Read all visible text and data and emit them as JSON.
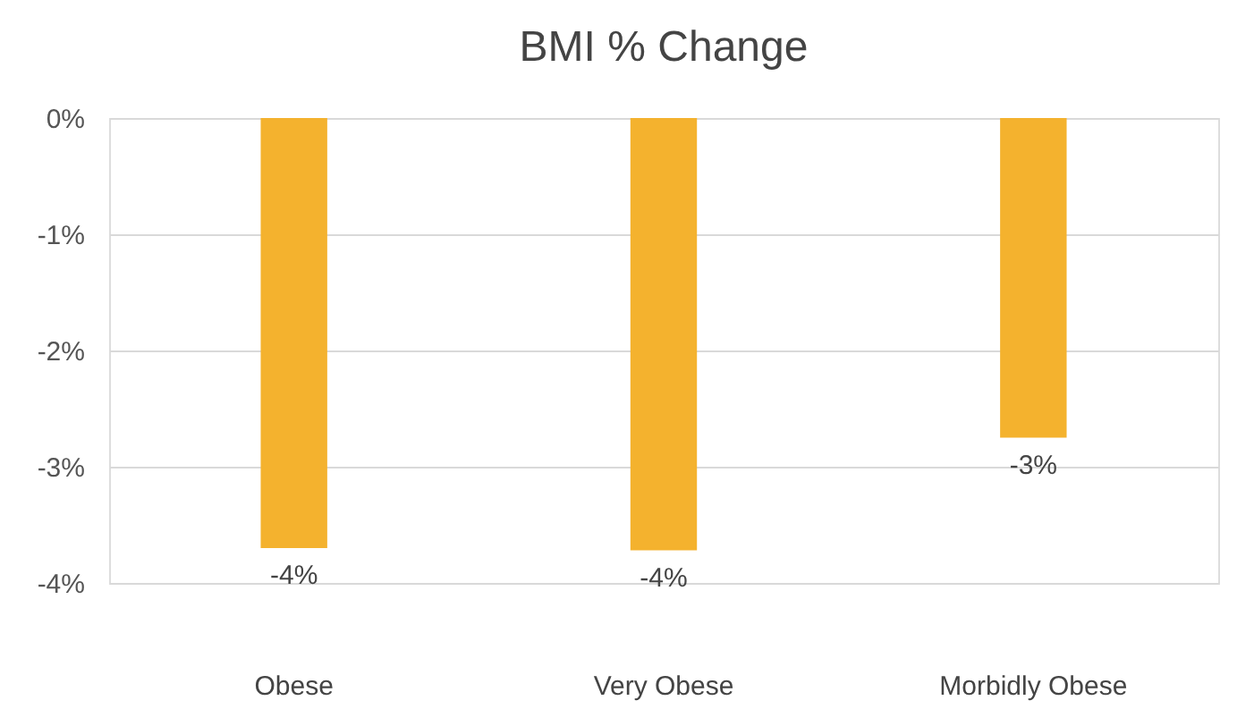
{
  "chart_data": {
    "type": "bar",
    "title": "BMI % Change",
    "categories": [
      "Obese",
      "Very Obese",
      "Morbidly Obese"
    ],
    "series": [
      {
        "color": "#f4b22e",
        "values": [
          -3.7,
          -3.72,
          -2.75
        ],
        "value_labels": [
          "-4%",
          "-4%",
          "-3%"
        ]
      }
    ],
    "ylim": [
      -4,
      0
    ],
    "yticks": [
      {
        "value": 0,
        "label": "0%"
      },
      {
        "value": -1,
        "label": "-1%"
      },
      {
        "value": -2,
        "label": "-2%"
      },
      {
        "value": -3,
        "label": "-3%"
      },
      {
        "value": -4,
        "label": "-4%"
      }
    ],
    "grid": "y"
  }
}
